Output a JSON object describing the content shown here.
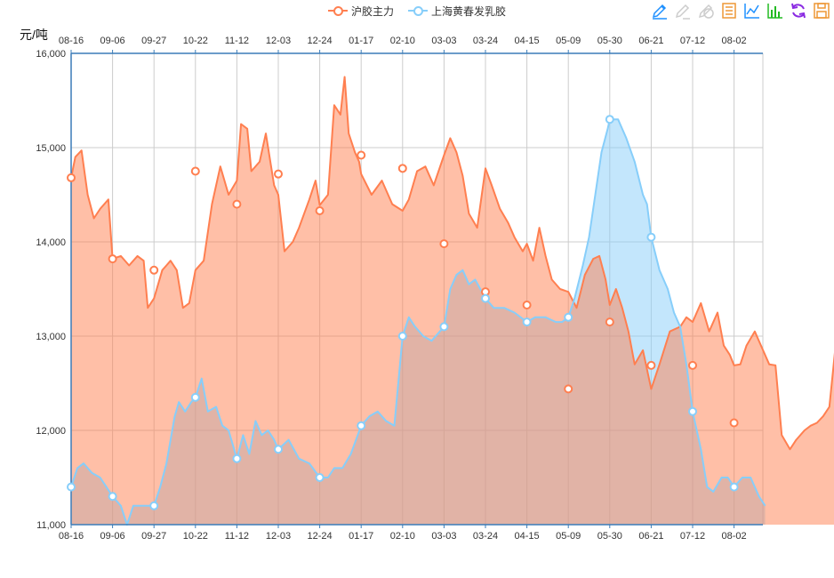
{
  "legend": {
    "items": [
      {
        "label": "沪胶主力",
        "color": "#ff7f50"
      },
      {
        "label": "上海黄春发乳胶",
        "color": "#87cefa"
      }
    ]
  },
  "toolbox": {
    "icons": [
      {
        "name": "mark-pen-icon",
        "color": "#1e90ff"
      },
      {
        "name": "mark-undo-icon",
        "color": "#cccccc"
      },
      {
        "name": "mark-clear-icon",
        "color": "#cccccc"
      },
      {
        "name": "data-view-icon",
        "color": "#ee9735"
      },
      {
        "name": "line-chart-icon",
        "color": "#1e90ff"
      },
      {
        "name": "bar-chart-icon",
        "color": "#22bb22"
      },
      {
        "name": "restore-icon",
        "color": "#8a2be2"
      },
      {
        "name": "save-image-icon",
        "color": "#ee9735"
      }
    ]
  },
  "chart_data": {
    "type": "area",
    "ylabel": "元/吨",
    "ylim": [
      11000,
      16000
    ],
    "yticks": [
      "11,000",
      "12,000",
      "13,000",
      "14,000",
      "15,000",
      "16,000"
    ],
    "xticks": [
      "08-16",
      "09-06",
      "09-27",
      "10-22",
      "11-12",
      "12-03",
      "12-24",
      "01-17",
      "02-10",
      "03-03",
      "03-24",
      "04-15",
      "05-09",
      "05-30",
      "06-21",
      "07-12",
      "08-02"
    ],
    "grid": true,
    "legend_position": "top-center",
    "series": [
      {
        "name": "沪胶主力",
        "color": "#ff7f50",
        "fill": "rgba(255,127,80,0.5)",
        "points": [
          [
            0,
            14680
          ],
          [
            0.1,
            14900
          ],
          [
            0.25,
            14970
          ],
          [
            0.4,
            14500
          ],
          [
            0.55,
            14250
          ],
          [
            0.7,
            14350
          ],
          [
            0.9,
            14450
          ],
          [
            1,
            13820
          ],
          [
            1.2,
            13850
          ],
          [
            1.4,
            13750
          ],
          [
            1.6,
            13850
          ],
          [
            1.75,
            13800
          ],
          [
            1.85,
            13300
          ],
          [
            2,
            13400
          ],
          [
            2.2,
            13700
          ],
          [
            2.3,
            13750
          ],
          [
            2.4,
            13800
          ],
          [
            2.55,
            13700
          ],
          [
            2.7,
            13300
          ],
          [
            2.85,
            13350
          ],
          [
            3,
            13700
          ],
          [
            3.2,
            13800
          ],
          [
            3.4,
            14400
          ],
          [
            3.6,
            14800
          ],
          [
            3.8,
            14500
          ],
          [
            4,
            14650
          ],
          [
            4.1,
            15250
          ],
          [
            4.25,
            15200
          ],
          [
            4.35,
            14750
          ],
          [
            4.55,
            14850
          ],
          [
            4.7,
            15150
          ],
          [
            4.9,
            14600
          ],
          [
            5,
            14500
          ],
          [
            5.15,
            13900
          ],
          [
            5.35,
            14000
          ],
          [
            5.5,
            14150
          ],
          [
            5.75,
            14450
          ],
          [
            5.9,
            14650
          ],
          [
            6,
            14390
          ],
          [
            6.2,
            14500
          ],
          [
            6.35,
            15450
          ],
          [
            6.5,
            15350
          ],
          [
            6.6,
            15750
          ],
          [
            6.7,
            15150
          ],
          [
            6.85,
            14950
          ],
          [
            6.95,
            14850
          ],
          [
            7,
            14720
          ],
          [
            7.25,
            14500
          ],
          [
            7.5,
            14650
          ],
          [
            7.75,
            14400
          ],
          [
            8,
            14330
          ],
          [
            8.15,
            14450
          ],
          [
            8.35,
            14750
          ],
          [
            8.55,
            14800
          ],
          [
            8.75,
            14600
          ],
          [
            9,
            14920
          ],
          [
            9.15,
            15100
          ],
          [
            9.3,
            14950
          ],
          [
            9.45,
            14700
          ],
          [
            9.6,
            14300
          ],
          [
            9.8,
            14150
          ],
          [
            10,
            14780
          ],
          [
            10.15,
            14600
          ],
          [
            10.35,
            14350
          ],
          [
            10.55,
            14200
          ],
          [
            10.7,
            14050
          ],
          [
            10.9,
            13900
          ],
          [
            11,
            13980
          ],
          [
            11.15,
            13800
          ],
          [
            11.3,
            14150
          ],
          [
            11.45,
            13850
          ],
          [
            11.6,
            13600
          ],
          [
            11.8,
            13500
          ],
          [
            12,
            13470
          ],
          [
            12.2,
            13300
          ],
          [
            12.4,
            13650
          ],
          [
            12.6,
            13820
          ],
          [
            12.75,
            13850
          ],
          [
            12.9,
            13600
          ],
          [
            13,
            13330
          ],
          [
            13.15,
            13500
          ],
          [
            13.3,
            13300
          ],
          [
            13.45,
            13050
          ],
          [
            13.6,
            12700
          ],
          [
            13.8,
            12850
          ],
          [
            14,
            12440
          ],
          [
            14.2,
            12700
          ],
          [
            14.45,
            13050
          ],
          [
            14.7,
            13100
          ],
          [
            14.85,
            13200
          ],
          [
            15,
            13150
          ],
          [
            15.2,
            13350
          ],
          [
            15.4,
            13050
          ],
          [
            15.6,
            13250
          ],
          [
            15.75,
            12900
          ],
          [
            15.9,
            12800
          ],
          [
            16,
            12690
          ],
          [
            16.15,
            12700
          ],
          [
            16.3,
            12900
          ],
          [
            16.5,
            13050
          ],
          [
            16.7,
            12850
          ],
          [
            16.85,
            12700
          ],
          [
            17,
            12690
          ],
          [
            17.15,
            11950
          ],
          [
            17.35,
            11800
          ],
          [
            17.5,
            11900
          ],
          [
            17.7,
            12000
          ],
          [
            17.85,
            12050
          ],
          [
            18,
            12080
          ],
          [
            18.15,
            12150
          ],
          [
            18.3,
            12250
          ],
          [
            18.45,
            12900
          ],
          [
            18.6,
            12980
          ],
          [
            18.75,
            12850
          ],
          [
            18.86,
            12850
          ]
        ],
        "marked_points": [
          [
            0,
            14680
          ],
          [
            1,
            13820
          ],
          [
            2,
            13700
          ],
          [
            3,
            14750
          ],
          [
            4,
            14400
          ],
          [
            5,
            14720
          ],
          [
            6,
            14330
          ],
          [
            7,
            14920
          ],
          [
            8,
            14780
          ],
          [
            9,
            13980
          ],
          [
            10,
            13470
          ],
          [
            11,
            13330
          ],
          [
            12,
            12440
          ],
          [
            13,
            13150
          ],
          [
            14,
            12690
          ],
          [
            15,
            12690
          ],
          [
            16,
            12080
          ]
        ]
      },
      {
        "name": "上海黄春发乳胶",
        "color": "#87cefa",
        "fill": "rgba(135,206,250,0.5)",
        "points": [
          [
            0,
            11400
          ],
          [
            0.15,
            11600
          ],
          [
            0.3,
            11650
          ],
          [
            0.5,
            11550
          ],
          [
            0.7,
            11500
          ],
          [
            0.85,
            11400
          ],
          [
            1,
            11300
          ],
          [
            1.2,
            11200
          ],
          [
            1.35,
            10900
          ],
          [
            1.5,
            11200
          ],
          [
            1.7,
            11200
          ],
          [
            1.9,
            11200
          ],
          [
            2,
            11200
          ],
          [
            2.15,
            11400
          ],
          [
            2.3,
            11650
          ],
          [
            2.5,
            12150
          ],
          [
            2.6,
            12300
          ],
          [
            2.75,
            12200
          ],
          [
            2.9,
            12300
          ],
          [
            3,
            12350
          ],
          [
            3.15,
            12550
          ],
          [
            3.3,
            12200
          ],
          [
            3.5,
            12250
          ],
          [
            3.65,
            12050
          ],
          [
            3.8,
            12000
          ],
          [
            4,
            11700
          ],
          [
            4.15,
            11950
          ],
          [
            4.3,
            11750
          ],
          [
            4.45,
            12100
          ],
          [
            4.6,
            11950
          ],
          [
            4.75,
            12000
          ],
          [
            4.9,
            11900
          ],
          [
            5,
            11800
          ],
          [
            5.25,
            11900
          ],
          [
            5.5,
            11700
          ],
          [
            5.75,
            11650
          ],
          [
            6,
            11500
          ],
          [
            6.2,
            11500
          ],
          [
            6.35,
            11600
          ],
          [
            6.55,
            11600
          ],
          [
            6.75,
            11750
          ],
          [
            7,
            12050
          ],
          [
            7.2,
            12150
          ],
          [
            7.4,
            12200
          ],
          [
            7.6,
            12100
          ],
          [
            7.8,
            12050
          ],
          [
            8,
            13000
          ],
          [
            8.15,
            13200
          ],
          [
            8.3,
            13100
          ],
          [
            8.5,
            13000
          ],
          [
            8.7,
            12950
          ],
          [
            8.9,
            13050
          ],
          [
            9,
            13100
          ],
          [
            9.15,
            13500
          ],
          [
            9.3,
            13650
          ],
          [
            9.45,
            13700
          ],
          [
            9.6,
            13550
          ],
          [
            9.75,
            13600
          ],
          [
            10,
            13400
          ],
          [
            10.2,
            13300
          ],
          [
            10.45,
            13300
          ],
          [
            10.7,
            13250
          ],
          [
            10.85,
            13200
          ],
          [
            11,
            13150
          ],
          [
            11.2,
            13200
          ],
          [
            11.45,
            13200
          ],
          [
            11.7,
            13150
          ],
          [
            11.85,
            13150
          ],
          [
            12,
            13200
          ],
          [
            12.15,
            13400
          ],
          [
            12.35,
            13750
          ],
          [
            12.5,
            14050
          ],
          [
            12.65,
            14500
          ],
          [
            12.8,
            14950
          ],
          [
            12.95,
            15200
          ],
          [
            13,
            15300
          ],
          [
            13.2,
            15300
          ],
          [
            13.4,
            15100
          ],
          [
            13.6,
            14850
          ],
          [
            13.8,
            14500
          ],
          [
            13.9,
            14400
          ],
          [
            14,
            14050
          ],
          [
            14.2,
            13700
          ],
          [
            14.4,
            13500
          ],
          [
            14.55,
            13250
          ],
          [
            14.7,
            13100
          ],
          [
            14.85,
            12700
          ],
          [
            15,
            12200
          ],
          [
            15.2,
            11800
          ],
          [
            15.35,
            11400
          ],
          [
            15.5,
            11350
          ],
          [
            15.7,
            11500
          ],
          [
            15.85,
            11500
          ],
          [
            16,
            11400
          ],
          [
            16.2,
            11500
          ],
          [
            16.4,
            11500
          ],
          [
            16.6,
            11300
          ],
          [
            16.75,
            11200
          ]
        ],
        "marked_points": [
          [
            0,
            11400
          ],
          [
            1,
            11300
          ],
          [
            2,
            11200
          ],
          [
            3,
            12350
          ],
          [
            4,
            11700
          ],
          [
            5,
            11800
          ],
          [
            6,
            11500
          ],
          [
            7,
            12050
          ],
          [
            8,
            13000
          ],
          [
            9,
            13100
          ],
          [
            10,
            13400
          ],
          [
            11,
            13150
          ],
          [
            12,
            13200
          ],
          [
            13,
            15300
          ],
          [
            14,
            14050
          ],
          [
            15,
            12200
          ],
          [
            16,
            11400
          ]
        ]
      }
    ]
  }
}
